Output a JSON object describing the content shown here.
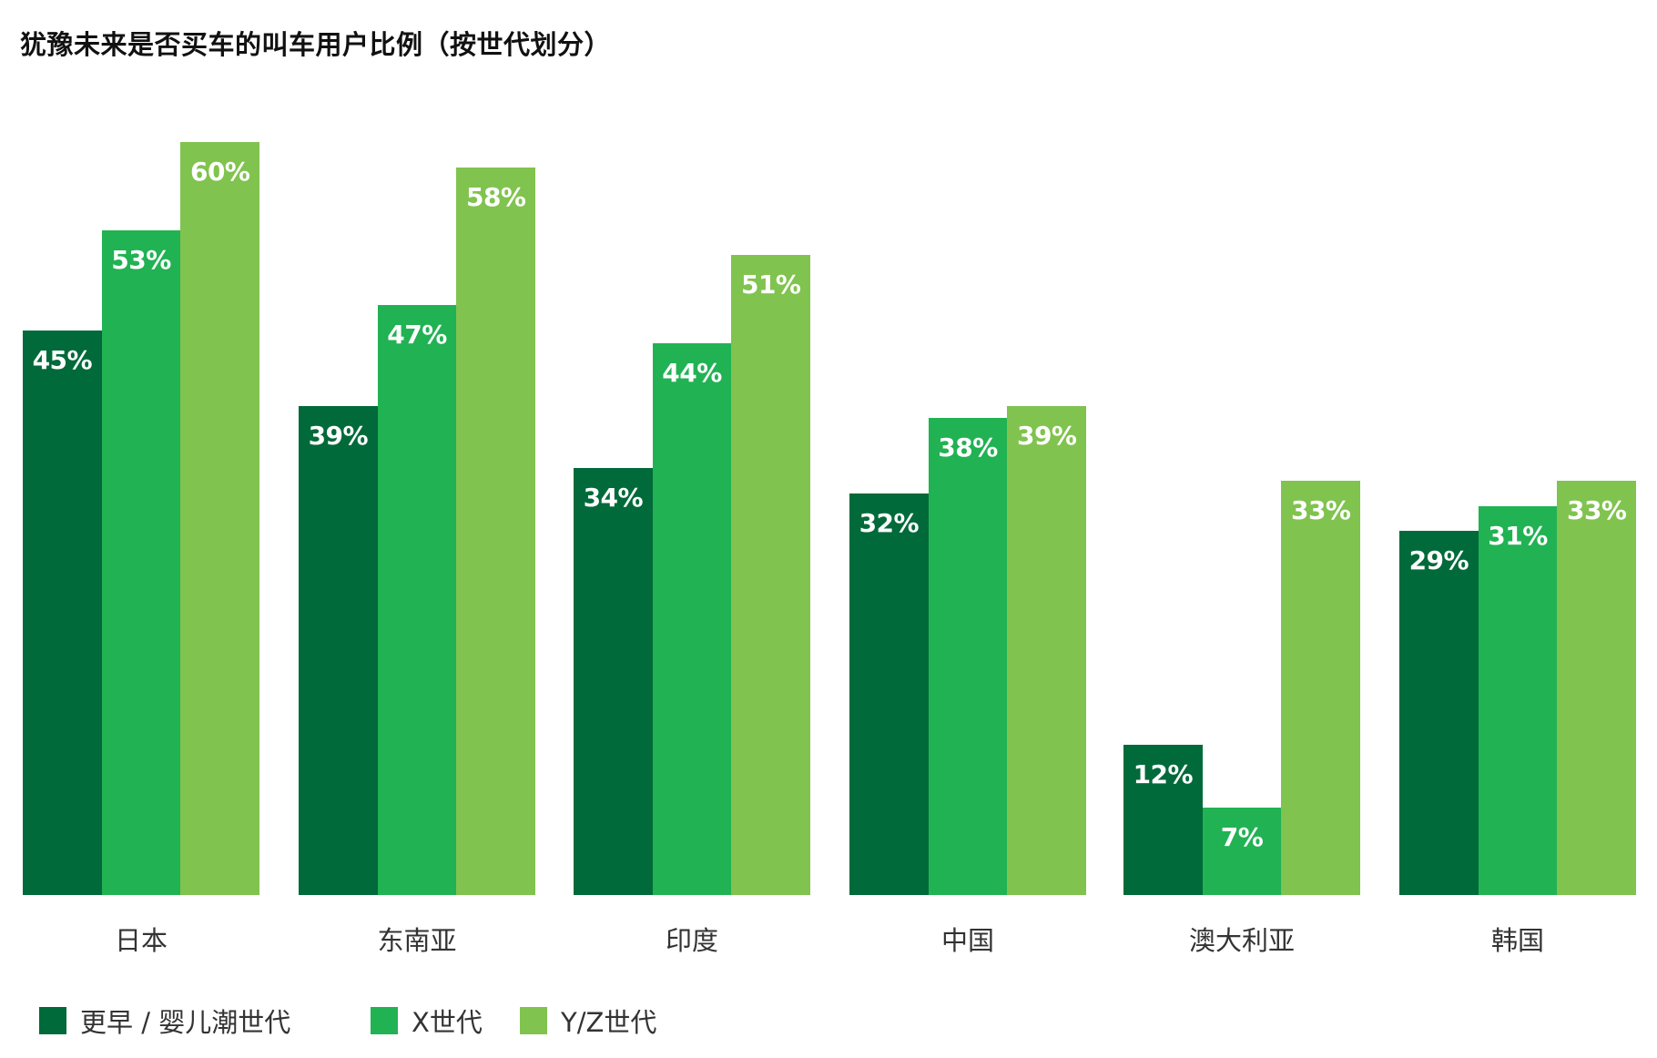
{
  "title": "犹豫未来是否买车的叫车用户比例（按世代划分）",
  "colors": {
    "boomers": "#006a3a",
    "genx": "#21b253",
    "genyz": "#80c34e"
  },
  "legend": [
    {
      "label": "更早 / 婴儿潮世代",
      "color": "#006a3a"
    },
    {
      "label": "X世代",
      "color": "#21b253"
    },
    {
      "label": "Y/Z世代",
      "color": "#80c34e"
    }
  ],
  "groups": [
    {
      "category": "日本",
      "values": [
        {
          "v": 45,
          "label": "45%"
        },
        {
          "v": 53,
          "label": "53%"
        },
        {
          "v": 60,
          "label": "60%"
        }
      ]
    },
    {
      "category": "东南亚",
      "values": [
        {
          "v": 39,
          "label": "39%"
        },
        {
          "v": 47,
          "label": "47%"
        },
        {
          "v": 58,
          "label": "58%"
        }
      ]
    },
    {
      "category": "印度",
      "values": [
        {
          "v": 34,
          "label": "34%"
        },
        {
          "v": 44,
          "label": "44%"
        },
        {
          "v": 51,
          "label": "51%"
        }
      ]
    },
    {
      "category": "中国",
      "values": [
        {
          "v": 32,
          "label": "32%"
        },
        {
          "v": 38,
          "label": "38%"
        },
        {
          "v": 39,
          "label": "39%"
        }
      ]
    },
    {
      "category": "澳大利亚",
      "values": [
        {
          "v": 12,
          "label": "12%"
        },
        {
          "v": 7,
          "label": "7%"
        },
        {
          "v": 33,
          "label": "33%"
        }
      ]
    },
    {
      "category": "韩国",
      "values": [
        {
          "v": 29,
          "label": "29%"
        },
        {
          "v": 31,
          "label": "31%"
        },
        {
          "v": 33,
          "label": "33%"
        }
      ]
    }
  ],
  "chart_data": {
    "type": "bar",
    "title": "犹豫未来是否买车的叫车用户比例（按世代划分）",
    "categories": [
      "日本",
      "东南亚",
      "印度",
      "中国",
      "澳大利亚",
      "韩国"
    ],
    "series": [
      {
        "name": "更早 / 婴儿潮世代",
        "color": "#006a3a",
        "values": [
          45,
          39,
          34,
          32,
          12,
          29
        ]
      },
      {
        "name": "X世代",
        "color": "#21b253",
        "values": [
          53,
          47,
          44,
          38,
          7,
          31
        ]
      },
      {
        "name": "Y/Z世代",
        "color": "#80c34e",
        "values": [
          60,
          58,
          51,
          39,
          33,
          33
        ]
      }
    ],
    "xlabel": "",
    "ylabel": "",
    "unit": "%",
    "ylim": [
      0,
      60
    ],
    "grid": false,
    "data_labels": true,
    "legend_position": "bottom-left"
  }
}
